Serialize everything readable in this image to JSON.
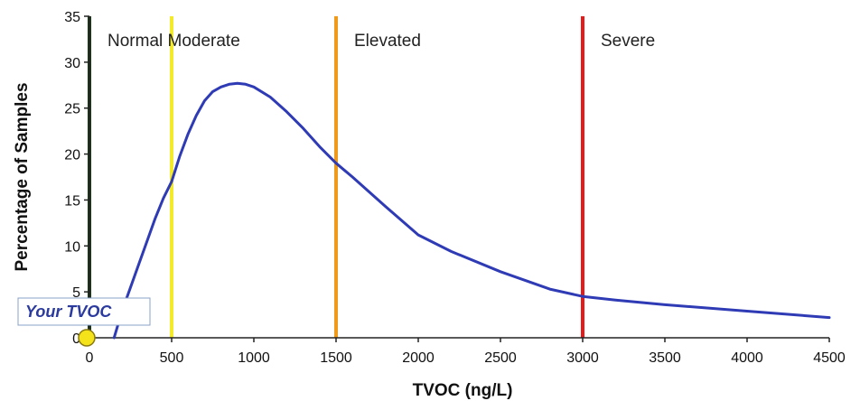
{
  "chart_data": {
    "type": "line",
    "title": "",
    "xlabel": "TVOC (ng/L)",
    "ylabel": "Percentage of Samples",
    "xlim": [
      0,
      4500
    ],
    "ylim": [
      0,
      35
    ],
    "x_ticks": [
      0,
      500,
      1000,
      1500,
      2000,
      2500,
      3000,
      3500,
      4000,
      4500
    ],
    "y_ticks": [
      0,
      5,
      10,
      15,
      20,
      25,
      30,
      35
    ],
    "grid": false,
    "series": [
      {
        "color": "#2e3bb5",
        "x": [
          150,
          200,
          250,
          300,
          350,
          400,
          450,
          500,
          550,
          600,
          650,
          700,
          750,
          800,
          850,
          900,
          950,
          1000,
          1100,
          1200,
          1300,
          1400,
          1500,
          1600,
          1800,
          2000,
          2200,
          2500,
          2800,
          3000,
          3200,
          3500,
          4000,
          4500
        ],
        "y": [
          0,
          3,
          5.5,
          8,
          10.5,
          13,
          15.2,
          17,
          19.8,
          22.2,
          24.2,
          25.8,
          26.8,
          27.3,
          27.6,
          27.7,
          27.6,
          27.3,
          26.2,
          24.6,
          22.8,
          20.8,
          19,
          17.5,
          14.3,
          11.2,
          9.4,
          7.2,
          5.3,
          4.5,
          4.1,
          3.6,
          2.9,
          2.2
        ]
      }
    ],
    "zones": [
      {
        "label": "Normal Moderate",
        "x": 0,
        "color": "#1a3a1a"
      },
      {
        "label": "",
        "x": 500,
        "color": "#f2ea2a"
      },
      {
        "label": "Elevated",
        "x": 1500,
        "color": "#f09a1c"
      },
      {
        "label": "Severe",
        "x": 3000,
        "color": "#e51b1b"
      }
    ],
    "marker": {
      "label": "Your TVOC",
      "x": 0,
      "y": 0,
      "color": "#f4e21a"
    }
  }
}
